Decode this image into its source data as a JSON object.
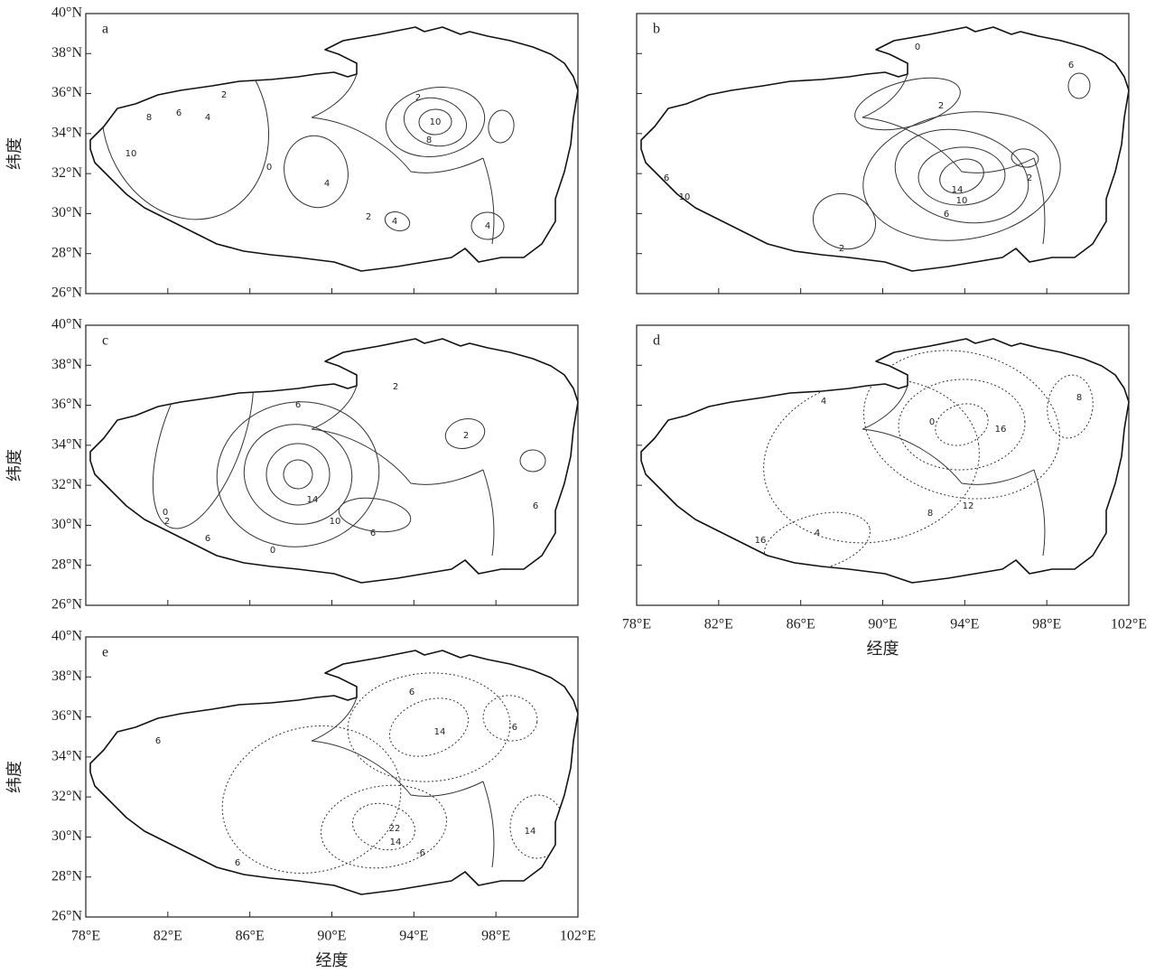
{
  "figure": {
    "lat_labels": [
      "40°N",
      "38°N",
      "36°N",
      "34°N",
      "32°N",
      "30°N",
      "28°N",
      "26°N"
    ],
    "lon_labels": [
      "78°E",
      "82°E",
      "86°E",
      "90°E",
      "94°E",
      "98°E",
      "102°E"
    ],
    "x_title": "经度",
    "y_title": "纬度",
    "panels": [
      {
        "letter": "a",
        "contour_labels": [
          "10",
          "8",
          "6",
          "4",
          "2",
          "0",
          "4",
          "2",
          "10",
          "8",
          "2",
          "4",
          "4"
        ]
      },
      {
        "letter": "b",
        "contour_labels": [
          "6",
          "10",
          "14",
          "10",
          "6",
          "2",
          "2",
          "2",
          "0",
          "6"
        ]
      },
      {
        "letter": "c",
        "contour_labels": [
          "6",
          "2",
          "14",
          "10",
          "6",
          "6",
          "0",
          "2",
          "0",
          "2",
          "6"
        ]
      },
      {
        "letter": "d",
        "contour_labels": [
          "4",
          "0",
          "16",
          "12",
          "8",
          "4",
          "16",
          "8"
        ]
      },
      {
        "letter": "e",
        "contour_labels": [
          "6",
          "14",
          "-6",
          "22",
          "14",
          "-6",
          "14",
          "6",
          "6"
        ]
      }
    ]
  }
}
